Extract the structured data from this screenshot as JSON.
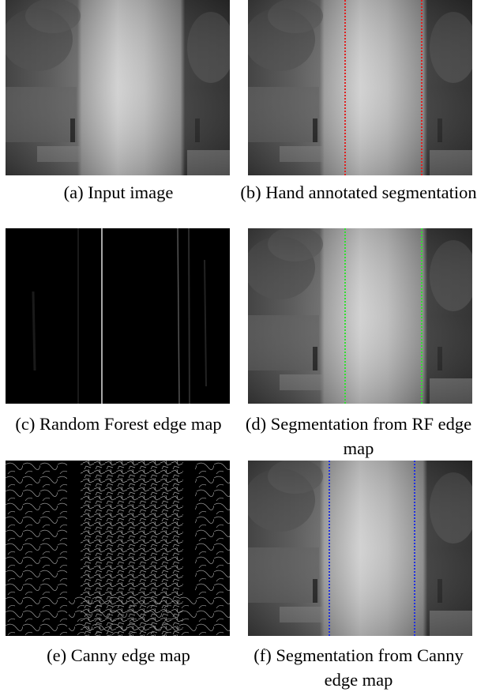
{
  "figure": {
    "panels": [
      {
        "caption": "(a) Input image"
      },
      {
        "caption": "(b) Hand annotated segmentation"
      },
      {
        "caption": "(c) Random Forest edge map"
      },
      {
        "caption": "(d) Segmentation from RF edge map"
      },
      {
        "caption": "(e) Canny edge map"
      },
      {
        "caption": "(f) Segmentation from Canny edge map"
      }
    ]
  }
}
